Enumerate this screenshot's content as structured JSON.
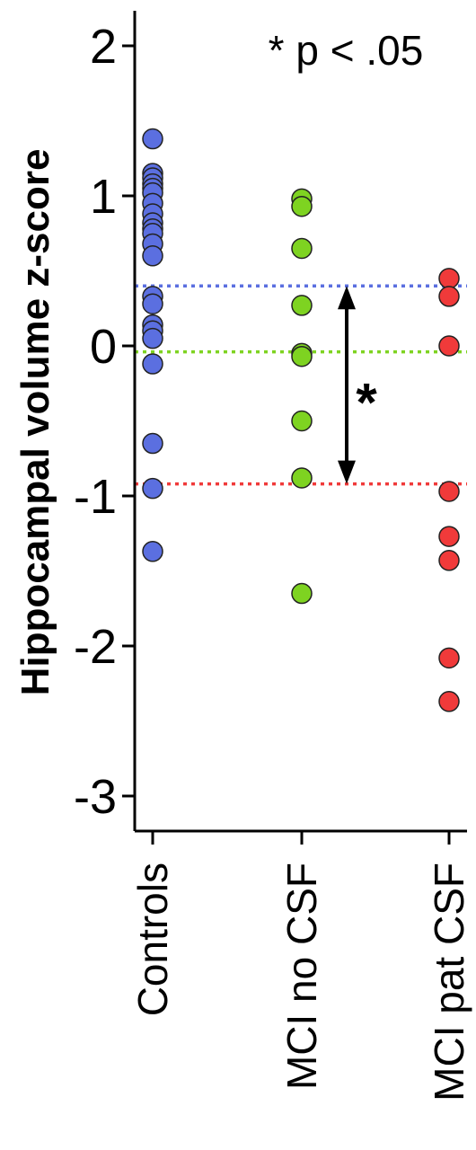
{
  "chart_data": {
    "type": "scatter",
    "title": "",
    "xlabel": "",
    "ylabel": "Hippocampal volume z-score",
    "ylim": [
      -3.3,
      2.3
    ],
    "yticks": [
      2,
      1,
      0,
      -1,
      -2,
      -3
    ],
    "ytick_labels": [
      "2",
      "1",
      "0",
      "-1",
      "-2",
      "-3"
    ],
    "categories": [
      "Controls",
      "MCI no CSF",
      "MCI pat CSF"
    ],
    "grid": false,
    "legend": "none",
    "annotation": "* p < .05",
    "significance_marker": "*",
    "series": [
      {
        "category": "Controls",
        "color": "#5b6fe0",
        "values": [
          1.38,
          1.15,
          1.12,
          1.08,
          1.05,
          1.02,
          0.95,
          0.88,
          0.82,
          0.78,
          0.75,
          0.68,
          0.6,
          0.33,
          0.28,
          0.14,
          0.1,
          0.05,
          -0.12,
          -0.65,
          -0.95,
          -1.37
        ],
        "mean": 0.4
      },
      {
        "category": "MCI no CSF",
        "color": "#7ed321",
        "values": [
          0.98,
          0.93,
          0.65,
          0.27,
          -0.05,
          -0.07,
          -0.5,
          -0.88,
          -1.65
        ],
        "mean": -0.04
      },
      {
        "category": "MCI pat CSF",
        "color": "#f03a3a",
        "values": [
          0.45,
          0.33,
          0.0,
          -0.97,
          -1.27,
          -1.43,
          -2.08,
          -2.37
        ],
        "mean": -0.92
      }
    ],
    "comparison": {
      "from": "Controls",
      "to": "MCI pat CSF",
      "symbol": "*"
    }
  }
}
